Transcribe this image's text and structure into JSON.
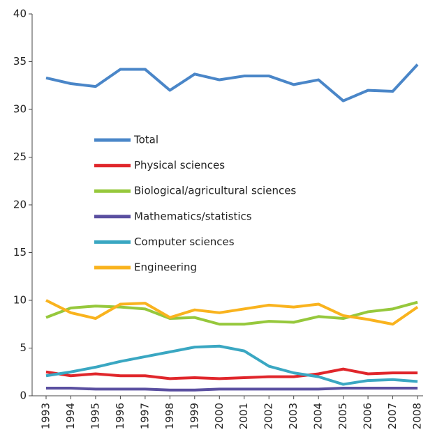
{
  "chart_data": {
    "type": "line",
    "categories": [
      "1993",
      "1994",
      "1995",
      "1996",
      "1997",
      "1998",
      "1999",
      "2000",
      "2001",
      "2002",
      "2003",
      "2004",
      "2005",
      "2006",
      "2007",
      "2008"
    ],
    "series": [
      {
        "name": "Total",
        "color": "#4a86c8",
        "values": [
          33.3,
          32.7,
          32.4,
          34.2,
          34.2,
          32.0,
          33.7,
          33.1,
          33.5,
          33.5,
          32.6,
          33.1,
          30.9,
          32.0,
          31.9,
          34.7
        ]
      },
      {
        "name": "Physical sciences",
        "color": "#e0262b",
        "values": [
          2.5,
          2.1,
          2.3,
          2.1,
          2.1,
          1.8,
          1.9,
          1.8,
          1.9,
          2.0,
          2.0,
          2.3,
          2.8,
          2.3,
          2.4,
          2.4
        ]
      },
      {
        "name": "Biological/agricultural sciences",
        "color": "#96c83c",
        "values": [
          8.2,
          9.2,
          9.4,
          9.3,
          9.1,
          8.1,
          8.2,
          7.5,
          7.5,
          7.8,
          7.7,
          8.3,
          8.1,
          8.8,
          9.1,
          9.8
        ]
      },
      {
        "name": "Mathematics/statistics",
        "color": "#5a4fa0",
        "values": [
          0.8,
          0.8,
          0.7,
          0.7,
          0.7,
          0.6,
          0.6,
          0.7,
          0.7,
          0.7,
          0.7,
          0.7,
          0.8,
          0.8,
          0.8,
          0.8
        ]
      },
      {
        "name": "Computer sciences",
        "color": "#3aa7c2",
        "values": [
          2.1,
          2.5,
          3.0,
          3.6,
          4.1,
          4.6,
          5.1,
          5.2,
          4.7,
          3.1,
          2.4,
          2.0,
          1.2,
          1.6,
          1.7,
          1.5
        ]
      },
      {
        "name": "Engineering",
        "color": "#f9b31e",
        "values": [
          10.0,
          8.7,
          8.1,
          9.6,
          9.7,
          8.2,
          9.0,
          8.7,
          9.1,
          9.5,
          9.3,
          9.6,
          8.4,
          8.0,
          7.5,
          9.3
        ]
      }
    ],
    "ylim": [
      0,
      40
    ],
    "yticks": [
      0,
      5,
      10,
      15,
      20,
      25,
      30,
      35,
      40
    ],
    "grid": false,
    "legend": "center-left"
  }
}
